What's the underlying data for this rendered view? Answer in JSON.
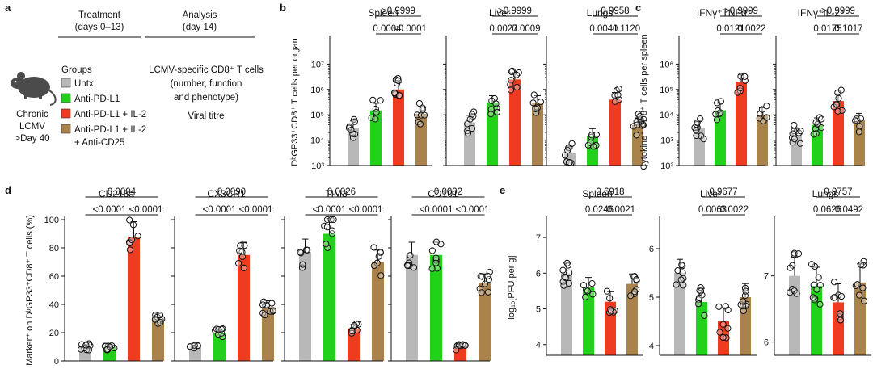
{
  "panel_labels": {
    "a": "a",
    "b": "b",
    "c": "c",
    "d": "d",
    "e": "e"
  },
  "colors": {
    "untx": "#b8b8b8",
    "pd": "#22d11a",
    "il2": "#ef3b1f",
    "cd25": "#a9824c"
  },
  "schematic": {
    "model_lines": [
      "Chronic",
      "LCMV",
      ">Day 40"
    ],
    "treatment_header": [
      "Treatment",
      "(days 0–13)"
    ],
    "analysis_header": [
      "Analysis",
      "(day 14)"
    ],
    "groups_label": "Groups",
    "groups": [
      "Untx",
      "Anti-PD-L1",
      "Anti-PD-L1 + IL-2",
      "Anti-PD-L1 + IL-2",
      "+ Anti-CD25"
    ],
    "analysis_lines": [
      "LCMV-specific CD8⁺ T cells",
      "(number, function",
      "and phenotype)",
      "Viral titre"
    ]
  },
  "chart_data": [
    {
      "panel": "b",
      "type": "bar",
      "scale": "log",
      "ylabel": "DᵇGP33⁺CD8⁺ T cells per organ",
      "ylim": [
        1000,
        100000000
      ],
      "yticks": [
        "10³",
        "10⁴",
        "10⁵",
        "10⁶",
        "10⁷"
      ],
      "subplots": [
        {
          "title": "Spleen",
          "values": [
            30000,
            150000,
            1000000,
            110000
          ],
          "pvalues": [
            {
              "text": "0.0004",
              "from": 1,
              "to": 2,
              "level": 0
            },
            {
              "text": "<0.0001",
              "from": 2,
              "to": 3,
              "level": 0
            },
            {
              "text": ">0.9999",
              "from": 1,
              "to": 3,
              "level": 1
            }
          ]
        },
        {
          "title": "Liver",
          "values": [
            50000,
            300000,
            2500000,
            300000
          ],
          "pvalues": [
            {
              "text": "0.0027",
              "from": 1,
              "to": 2,
              "level": 0
            },
            {
              "text": "0.0009",
              "from": 2,
              "to": 3,
              "level": 0
            },
            {
              "text": ">0.9999",
              "from": 1,
              "to": 3,
              "level": 1
            }
          ]
        },
        {
          "title": "Lungs",
          "values": [
            3000,
            15000,
            400000,
            40000
          ],
          "pvalues": [
            {
              "text": "0.0041",
              "from": 1,
              "to": 2,
              "level": 0
            },
            {
              "text": "0.1120",
              "from": 2,
              "to": 3,
              "level": 0
            },
            {
              "text": "0.9958",
              "from": 1,
              "to": 3,
              "level": 1
            }
          ]
        }
      ]
    },
    {
      "panel": "c",
      "type": "bar",
      "scale": "log",
      "ylabel": "Cytokine⁺ CD8⁺ T cells per spleen",
      "ylim": [
        100,
        10000000
      ],
      "yticks": [
        "10²",
        "10³",
        "10⁴",
        "10⁵",
        "10⁶"
      ],
      "subplots": [
        {
          "title": "IFNγ⁺TNFα⁺",
          "values": [
            3000,
            15000,
            200000,
            10000
          ],
          "pvalues": [
            {
              "text": "0.0121",
              "from": 1,
              "to": 2,
              "level": 0
            },
            {
              "text": "0.0022",
              "from": 2,
              "to": 3,
              "level": 0
            },
            {
              "text": ">0.9999",
              "from": 1,
              "to": 3,
              "level": 1
            }
          ]
        },
        {
          "title": "IFNγ⁺IL-2⁺",
          "values": [
            1500,
            4000,
            35000,
            6000
          ],
          "pvalues": [
            {
              "text": "0.0175",
              "from": 1,
              "to": 2,
              "level": 0
            },
            {
              "text": "0.1017",
              "from": 2,
              "to": 3,
              "level": 0
            },
            {
              "text": ">0.9999",
              "from": 1,
              "to": 3,
              "level": 1
            }
          ]
        }
      ]
    },
    {
      "panel": "d",
      "type": "bar",
      "scale": "linear",
      "ylabel": "Marker⁺ on DᵇGP33⁺CD8⁺ T cells (%)",
      "ylim": [
        0,
        100
      ],
      "yticks": [
        "0",
        "20",
        "40",
        "60",
        "80",
        "100"
      ],
      "subplots": [
        {
          "title": "CD218a",
          "values": [
            10,
            10,
            88,
            30
          ],
          "pvalues": [
            {
              "text": "<0.0001",
              "from": 0,
              "to": 2,
              "level": 0
            },
            {
              "text": "<0.0001",
              "from": 2,
              "to": 3,
              "level": 0
            },
            {
              "text": "0.0004",
              "from": 0,
              "to": 3,
              "level": 1
            }
          ]
        },
        {
          "title": "CX3CR1",
          "values": [
            11,
            20,
            75,
            38
          ],
          "pvalues": [
            {
              "text": "<0.0001",
              "from": 0,
              "to": 2,
              "level": 0
            },
            {
              "text": "<0.0001",
              "from": 2,
              "to": 3,
              "level": 0
            },
            {
              "text": "0.0090",
              "from": 0,
              "to": 3,
              "level": 1
            }
          ]
        },
        {
          "title": "TIM3",
          "values": [
            77,
            90,
            23,
            70
          ],
          "pvalues": [
            {
              "text": "<0.0001",
              "from": 0,
              "to": 2,
              "level": 0
            },
            {
              "text": "<0.0001",
              "from": 2,
              "to": 3,
              "level": 0
            },
            {
              "text": "0.0026",
              "from": 0,
              "to": 3,
              "level": 1
            }
          ]
        },
        {
          "title": "CD101",
          "values": [
            75,
            75,
            10,
            55
          ],
          "pvalues": [
            {
              "text": "<0.0001",
              "from": 0,
              "to": 2,
              "level": 0
            },
            {
              "text": "<0.0001",
              "from": 2,
              "to": 3,
              "level": 0
            },
            {
              "text": "0.0002",
              "from": 0,
              "to": 3,
              "level": 1
            }
          ]
        }
      ]
    },
    {
      "panel": "e",
      "type": "bar",
      "scale": "linear",
      "ylabel": "log₁₀[PFU per g]",
      "subplots": [
        {
          "title": "Spleen",
          "ylim": [
            3.7,
            7.5
          ],
          "yticks": [
            4,
            5,
            6,
            7
          ],
          "values": [
            6.0,
            5.6,
            5.2,
            5.7
          ],
          "pvalues": [
            {
              "text": "0.0246",
              "from": 1,
              "to": 2,
              "level": 0
            },
            {
              "text": "0.0021",
              "from": 2,
              "to": 3,
              "level": 0
            },
            {
              "text": "0.6918",
              "from": 1,
              "to": 3,
              "level": 1
            }
          ]
        },
        {
          "title": "Liver",
          "ylim": [
            3.8,
            6.6
          ],
          "yticks": [
            4,
            5,
            6
          ],
          "values": [
            5.5,
            4.9,
            4.5,
            5.0
          ],
          "pvalues": [
            {
              "text": "0.0063",
              "from": 1,
              "to": 2,
              "level": 0
            },
            {
              "text": "0.0022",
              "from": 2,
              "to": 3,
              "level": 0
            },
            {
              "text": "0.9677",
              "from": 1,
              "to": 3,
              "level": 1
            }
          ]
        },
        {
          "title": "Lungs",
          "ylim": [
            5.8,
            7.85
          ],
          "yticks": [
            6,
            7
          ],
          "values": [
            7.0,
            6.85,
            6.6,
            6.9
          ],
          "pvalues": [
            {
              "text": "0.0626",
              "from": 1,
              "to": 2,
              "level": 0
            },
            {
              "text": "0.0492",
              "from": 2,
              "to": 3,
              "level": 0
            },
            {
              "text": "0.9757",
              "from": 1,
              "to": 3,
              "level": 1
            }
          ]
        }
      ]
    }
  ]
}
